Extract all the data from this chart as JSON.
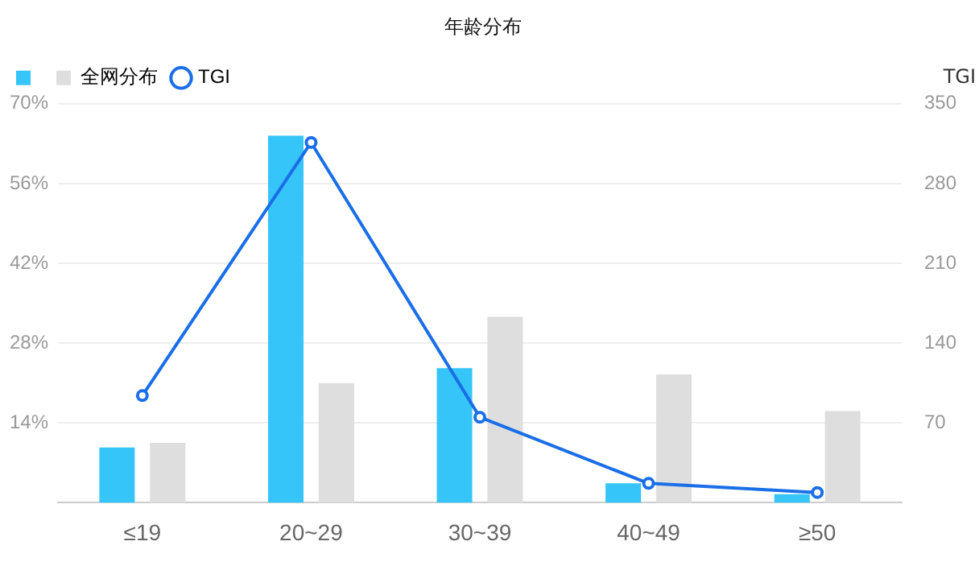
{
  "chart_data": {
    "type": "bar",
    "title": "年龄分布",
    "y2label": "TGI",
    "categories": [
      "≤19",
      "20~29",
      "30~39",
      "40~49",
      "≥50"
    ],
    "series": [
      {
        "color": "#36c5f8",
        "values": [
          9.7,
          64.4,
          23.6,
          3.4,
          1.5
        ]
      },
      {
        "name": "全网分布",
        "color": "#dedede",
        "values": [
          10.5,
          21,
          32.6,
          22.5,
          16.1
        ]
      },
      {
        "name": "TGI",
        "type": "line",
        "axis": "y2",
        "color": "#1a6fe8",
        "values": [
          94,
          316,
          75,
          17,
          9
        ]
      }
    ],
    "ylim": [
      0,
      70
    ],
    "yticks": [
      {
        "value": 14,
        "label": "14%"
      },
      {
        "value": 28,
        "label": "28%"
      },
      {
        "value": 42,
        "label": "42%"
      },
      {
        "value": 56,
        "label": "56%"
      },
      {
        "value": 70,
        "label": "70%"
      }
    ],
    "y2lim": [
      0,
      350
    ],
    "y2ticks": [
      70,
      140,
      210,
      280,
      350
    ],
    "grid": "y",
    "legend": "top left",
    "marker": "circle"
  }
}
